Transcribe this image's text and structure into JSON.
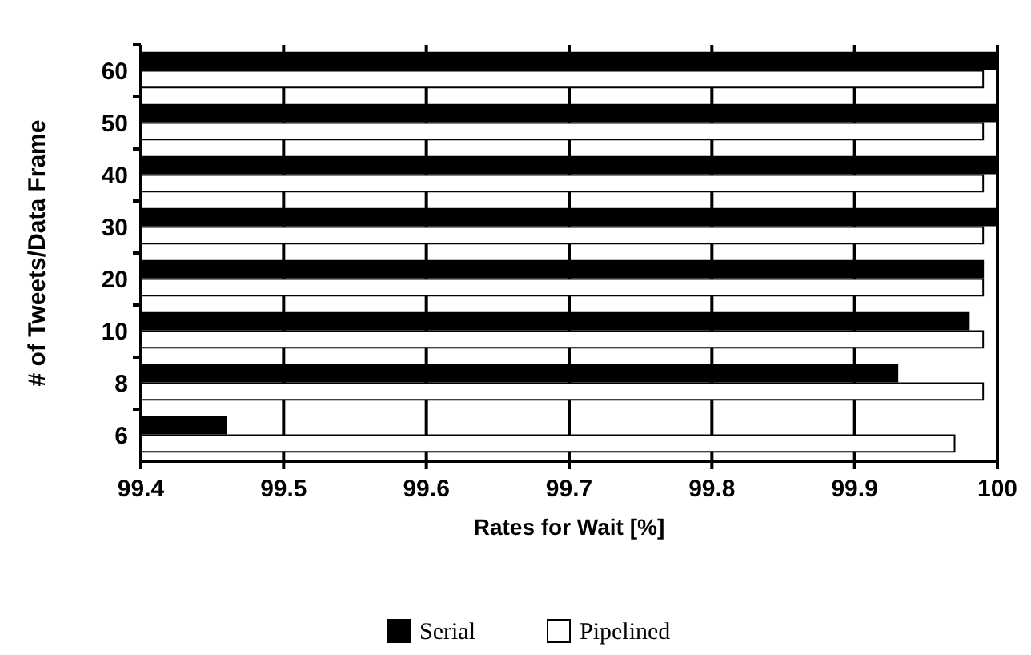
{
  "chart_data": {
    "type": "bar",
    "orientation": "horizontal",
    "xlabel": "Rates for Wait [%]",
    "ylabel": "# of Tweets/Data Frame",
    "categories": [
      "60",
      "50",
      "40",
      "30",
      "20",
      "10",
      "8",
      "6"
    ],
    "series": [
      {
        "name": "Serial",
        "color": "#000000",
        "values": [
          100,
          100,
          100,
          100,
          99.99,
          99.98,
          99.93,
          99.46
        ]
      },
      {
        "name": "Pipelined",
        "color": "#ffffff",
        "values": [
          99.99,
          99.99,
          99.99,
          99.99,
          99.99,
          99.99,
          99.99,
          99.97
        ]
      }
    ],
    "xlim": [
      99.4,
      100
    ],
    "xticks": [
      99.4,
      99.5,
      99.6,
      99.7,
      99.8,
      99.9,
      100
    ],
    "grid": "x",
    "legend": "bottom"
  }
}
